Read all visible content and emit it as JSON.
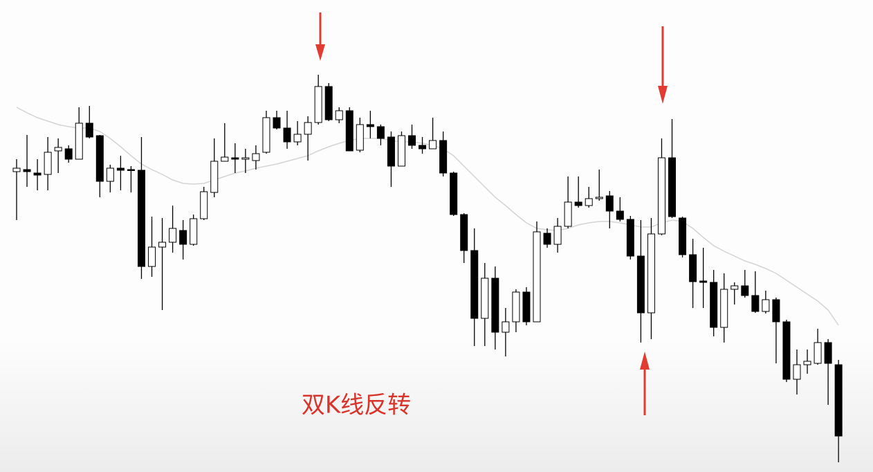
{
  "chart_data": {
    "type": "candlestick",
    "annotation": "双K线反转",
    "up_color": "#ffffff",
    "down_color": "#000000",
    "edge_color": "#000000",
    "open": [
      452,
      455,
      450,
      448,
      482,
      485,
      470,
      522,
      504,
      438,
      457,
      455,
      454,
      315,
      343,
      350,
      367,
      347,
      384,
      422,
      467,
      472,
      470,
      468,
      480,
      530,
      515,
      495,
      506,
      523,
      575,
      527,
      540,
      483,
      520,
      517,
      502,
      460,
      504,
      490,
      485,
      497,
      450,
      390,
      338,
      240,
      298,
      220,
      235,
      278,
      235,
      363,
      347,
      373,
      408,
      403,
      413,
      417,
      395,
      383,
      330,
      248,
      362,
      472,
      385,
      332,
      294,
      292,
      227,
      282,
      287,
      273,
      250,
      267,
      235,
      152,
      173,
      175,
      205,
      173
    ],
    "high": [
      470,
      505,
      470,
      502,
      500,
      490,
      545,
      547,
      505,
      462,
      475,
      460,
      502,
      387,
      385,
      403,
      382,
      390,
      430,
      500,
      522,
      493,
      485,
      490,
      540,
      540,
      540,
      525,
      532,
      592,
      580,
      545,
      545,
      530,
      540,
      520,
      510,
      510,
      520,
      502,
      530,
      510,
      452,
      392,
      370,
      320,
      315,
      255,
      282,
      285,
      380,
      370,
      385,
      445,
      445,
      430,
      455,
      424,
      415,
      388,
      382,
      385,
      500,
      528,
      387,
      355,
      342,
      310,
      305,
      292,
      310,
      308,
      280,
      270,
      238,
      195,
      195,
      225,
      210,
      180
    ],
    "low": [
      382,
      430,
      425,
      425,
      450,
      465,
      470,
      500,
      415,
      422,
      425,
      422,
      297,
      300,
      252,
      335,
      325,
      345,
      382,
      415,
      467,
      450,
      450,
      455,
      478,
      513,
      485,
      490,
      468,
      520,
      525,
      522,
      482,
      480,
      500,
      490,
      430,
      460,
      485,
      478,
      485,
      445,
      388,
      320,
      200,
      200,
      195,
      185,
      220,
      230,
      235,
      342,
      335,
      370,
      400,
      400,
      410,
      370,
      380,
      325,
      205,
      210,
      360,
      385,
      328,
      255,
      255,
      214,
      205,
      260,
      270,
      248,
      247,
      175,
      148,
      130,
      160,
      173,
      115,
      32
    ],
    "close": [
      457,
      452,
      447,
      480,
      487,
      470,
      522,
      502,
      438,
      457,
      454,
      454,
      315,
      343,
      350,
      370,
      347,
      384,
      423,
      467,
      473,
      470,
      472,
      478,
      530,
      515,
      495,
      506,
      523,
      575,
      527,
      540,
      482,
      520,
      517,
      500,
      460,
      504,
      490,
      485,
      497,
      450,
      390,
      338,
      240,
      298,
      220,
      235,
      278,
      235,
      365,
      347,
      373,
      408,
      403,
      413,
      415,
      395,
      383,
      330,
      248,
      362,
      472,
      387,
      332,
      293,
      292,
      227,
      282,
      287,
      273,
      250,
      267,
      235,
      152,
      173,
      178,
      205,
      175,
      70
    ],
    "ma": {
      "color": "#d4d4d4",
      "values": [
        545,
        537,
        530,
        525,
        520,
        517,
        515,
        515,
        510,
        500,
        488,
        475,
        463,
        455,
        448,
        440,
        435,
        434,
        435,
        440,
        445,
        450,
        453,
        457,
        460,
        463,
        467,
        471,
        475,
        482,
        488,
        493,
        497,
        500,
        500,
        500,
        497,
        495,
        495,
        493,
        490,
        485,
        475,
        460,
        445,
        430,
        415,
        403,
        390,
        378,
        370,
        368,
        367,
        370,
        375,
        378,
        380,
        380,
        378,
        375,
        372,
        372,
        378,
        382,
        380,
        370,
        357,
        345,
        337,
        330,
        323,
        318,
        312,
        305,
        295,
        285,
        275,
        265,
        252,
        230
      ]
    }
  }
}
